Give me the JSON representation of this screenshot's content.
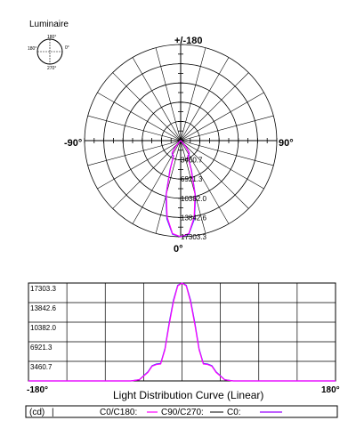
{
  "luminaire_label": "Luminaire",
  "legend_icon": {
    "top": "180°",
    "left": "180°",
    "right": "0°",
    "bottom": "270°"
  },
  "polar": {
    "top_label": "+/-180",
    "left_label": "-90°",
    "right_label": "90°",
    "bottom_label": "0°",
    "value_labels": [
      "3460.7",
      "6921.3",
      "10382.0",
      "13842.6",
      "17303.3"
    ]
  },
  "linear": {
    "left_label": "-180°",
    "right_label": "180°",
    "y_labels": [
      "17303.3",
      "13842.6",
      "10382.0",
      "6921.3",
      "3460.7"
    ]
  },
  "curve_title": "Light Distribution Curve (Linear)",
  "legend_bar": {
    "unit": "(cd)",
    "sep": "|",
    "c0_label": "C0/C180:",
    "c90_label": "C90/C270:",
    "c0b_label": "C0:"
  },
  "colors": {
    "c0": "#ff00ff",
    "c90": "#4040ff",
    "grid": "#000000"
  },
  "chart_data": {
    "type": "line",
    "title": "Light Distribution Curve (Linear)",
    "ylabel": "(cd)",
    "xlim": [
      -180,
      180
    ],
    "ylim": [
      0,
      17303.3
    ],
    "yticks": [
      3460.7,
      6921.3,
      10382.0,
      13842.6,
      17303.3
    ],
    "series": [
      {
        "name": "C0/C180",
        "x": [
          -180,
          -90,
          -60,
          -50,
          -40,
          -35,
          -30,
          -25,
          -20,
          -15,
          -10,
          -5,
          0,
          5,
          10,
          15,
          20,
          25,
          30,
          35,
          40,
          50,
          60,
          90,
          180
        ],
        "values": [
          0,
          0,
          0,
          200,
          1500,
          2600,
          2900,
          3000,
          5500,
          10000,
          14000,
          16800,
          17303.3,
          16800,
          14000,
          10000,
          5500,
          3000,
          2900,
          2600,
          1500,
          200,
          0,
          0,
          0
        ]
      },
      {
        "name": "C90/C270",
        "x": [
          -180,
          -90,
          -60,
          -50,
          -40,
          -35,
          -30,
          -25,
          -20,
          -15,
          -10,
          -5,
          0,
          5,
          10,
          15,
          20,
          25,
          30,
          35,
          40,
          50,
          60,
          90,
          180
        ],
        "values": [
          0,
          0,
          0,
          220,
          1600,
          2700,
          3000,
          3100,
          5700,
          10300,
          14300,
          16900,
          17303.3,
          16900,
          14300,
          10300,
          5700,
          3100,
          3000,
          2700,
          1600,
          220,
          0,
          0,
          0
        ]
      }
    ]
  }
}
